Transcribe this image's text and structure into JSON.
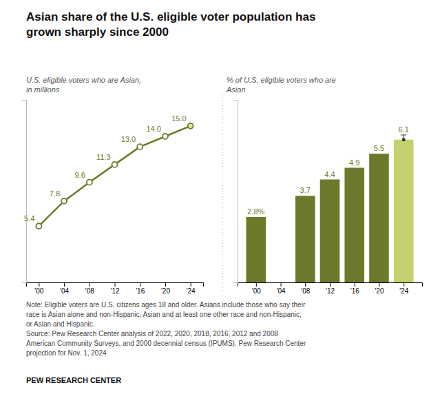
{
  "title": "Asian share of the U.S. eligible voter population has\ngrown sharply since 2000",
  "annotations": [
    "Note: Eligible voters are U.S. citizens ages 18 and older. Asians include those who say their\nrace is Asian alone and non-Hispanic, Asian and at least one other race and non-Hispanic,\nor Asian and Hispanic.\nSource: Pew Research Center analysis of 2022, 2020, 2018, 2016, 2012 and 2008\nAmerican Community Surveys, and 2000 decennial census (IPUMS). Pew Research Center\nprojection for Nov. 1, 2024.",
    "PEW RESEARCH CENTER"
  ],
  "chart_data": [
    {
      "type": "line",
      "subtitle": "U.S. eligible voters who are Asian,\nin millions",
      "x": [
        2000,
        2004,
        2008,
        2012,
        2016,
        2020,
        2024
      ],
      "values": [
        5.4,
        7.8,
        9.6,
        11.3,
        13.0,
        14.0,
        15.0
      ],
      "value_labels": [
        "5.4",
        "7.8",
        "9.6",
        "11.3",
        "13.0",
        "14.0",
        "15.0"
      ],
      "data_labels": true,
      "color": "#6b7a2a",
      "colors": [
        "#ffffff",
        "#ffffff",
        "#ffffff",
        "#ffffff",
        "#ffffff",
        "#ffffff",
        "#d8e896"
      ],
      "marker": "circle",
      "xlim": [
        1998,
        2026
      ],
      "xticks": [
        {
          "value": 2000,
          "label": "'00"
        },
        {
          "value": 2004,
          "label": "'04"
        },
        {
          "value": 2008,
          "label": "'08"
        },
        {
          "value": 2012,
          "label": "'12"
        },
        {
          "value": 2016,
          "label": "'16"
        },
        {
          "value": 2020,
          "label": "'20"
        },
        {
          "value": 2024,
          "label": "'24"
        }
      ],
      "ylim": [
        0,
        17.5
      ],
      "yticks": [],
      "tick_labels": "x",
      "grid": false
    },
    {
      "type": "bar",
      "subtitle": "% of U.S. eligible voters who are\nAsian",
      "x": [
        2000,
        2004,
        2008,
        2012,
        2016,
        2020,
        2024
      ],
      "values": [
        2.8,
        0,
        3.7,
        4.4,
        4.9,
        5.5,
        6.1
      ],
      "value_labels": [
        "2.8%",
        null,
        "3.7",
        "4.4",
        "4.9",
        "5.5",
        "6.1"
      ],
      "data_labels": true,
      "colors": [
        "#6b7a2a",
        "#6b7a2a",
        "#6b7a2a",
        "#6b7a2a",
        "#6b7a2a",
        "#6b7a2a",
        "#c5d16e"
      ],
      "error_minus": [
        null,
        null,
        null,
        null,
        null,
        null,
        0
      ],
      "error_plus": [
        null,
        null,
        null,
        null,
        null,
        null,
        0.2
      ],
      "xlim": [
        1997,
        2027
      ],
      "xticks": [
        {
          "value": 2000,
          "label": "'00"
        },
        {
          "value": 2004,
          "label": "'04"
        },
        {
          "value": 2008,
          "label": "'08"
        },
        {
          "value": 2012,
          "label": "'12"
        },
        {
          "value": 2016,
          "label": "'16"
        },
        {
          "value": 2020,
          "label": "'20"
        },
        {
          "value": 2024,
          "label": "'24"
        }
      ],
      "ylim": [
        0,
        7.8
      ],
      "yticks": [],
      "tick_labels": "x",
      "grid": false
    }
  ]
}
